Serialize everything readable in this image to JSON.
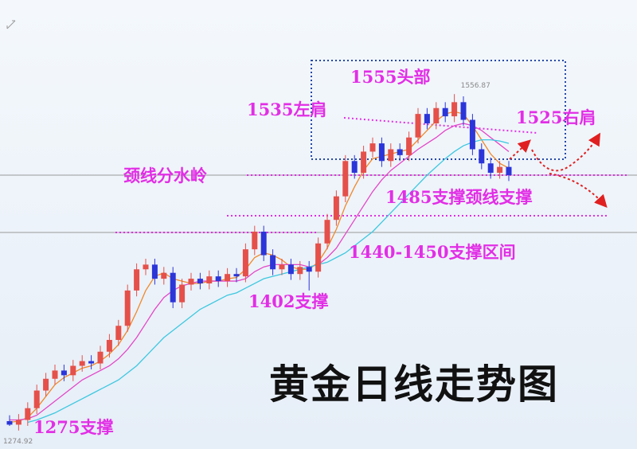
{
  "chart_data": {
    "type": "candlestick",
    "title": "黄金日线走势图",
    "open": [
      1279,
      1276,
      1280,
      1290,
      1305,
      1315,
      1322,
      1318,
      1326,
      1330,
      1328,
      1338,
      1348,
      1360,
      1390,
      1408,
      1412,
      1400,
      1405,
      1380,
      1395,
      1400,
      1396,
      1402,
      1398,
      1404,
      1402,
      1425,
      1440,
      1420,
      1408,
      1412,
      1404,
      1410,
      1406,
      1430,
      1450,
      1470,
      1500,
      1490,
      1508,
      1515,
      1500,
      1510,
      1505,
      1520,
      1540,
      1532,
      1545,
      1538,
      1550,
      1535,
      1510,
      1498,
      1490,
      1495
    ],
    "high": [
      1284,
      1285,
      1295,
      1310,
      1320,
      1327,
      1327,
      1331,
      1335,
      1335,
      1343,
      1353,
      1365,
      1395,
      1413,
      1417,
      1417,
      1410,
      1410,
      1400,
      1405,
      1405,
      1407,
      1407,
      1409,
      1409,
      1430,
      1445,
      1445,
      1425,
      1417,
      1417,
      1415,
      1415,
      1435,
      1455,
      1475,
      1505,
      1505,
      1513,
      1520,
      1520,
      1515,
      1515,
      1525,
      1545,
      1545,
      1550,
      1550,
      1556.87,
      1555,
      1540,
      1515,
      1503,
      1500,
      1500
    ],
    "low": [
      1274.92,
      1271,
      1275,
      1285,
      1300,
      1310,
      1313,
      1313,
      1321,
      1323,
      1323,
      1333,
      1343,
      1355,
      1385,
      1403,
      1395,
      1395,
      1375,
      1375,
      1390,
      1391,
      1391,
      1393,
      1393,
      1397,
      1397,
      1420,
      1415,
      1403,
      1403,
      1399,
      1399,
      1390,
      1401,
      1425,
      1445,
      1465,
      1485,
      1485,
      1503,
      1495,
      1495,
      1500,
      1500,
      1515,
      1527,
      1527,
      1533,
      1533,
      1530,
      1505,
      1493,
      1485,
      1485,
      1483
    ],
    "close": [
      1276,
      1280,
      1290,
      1305,
      1315,
      1322,
      1318,
      1326,
      1330,
      1328,
      1338,
      1348,
      1360,
      1390,
      1408,
      1412,
      1400,
      1405,
      1380,
      1395,
      1400,
      1396,
      1402,
      1398,
      1404,
      1402,
      1425,
      1440,
      1420,
      1408,
      1412,
      1404,
      1410,
      1406,
      1430,
      1450,
      1470,
      1500,
      1490,
      1508,
      1515,
      1500,
      1510,
      1505,
      1520,
      1540,
      1532,
      1545,
      1538,
      1550,
      1535,
      1510,
      1498,
      1490,
      1495,
      1488
    ],
    "up_color": "#e5504a",
    "down_color": "#2b35d8",
    "moving_averages": [
      {
        "color": "#f0882a",
        "values": [
          1278,
          1279,
          1282,
          1290,
          1300,
          1310,
          1316,
          1320,
          1324,
          1326,
          1330,
          1336,
          1344,
          1356,
          1372,
          1390,
          1402,
          1405,
          1400,
          1398,
          1396,
          1396,
          1398,
          1398,
          1400,
          1401,
          1408,
          1418,
          1422,
          1420,
          1416,
          1410,
          1408,
          1408,
          1414,
          1426,
          1442,
          1462,
          1478,
          1492,
          1502,
          1504,
          1506,
          1508,
          1510,
          1518,
          1526,
          1534,
          1540,
          1542,
          1540,
          1530,
          1518,
          1506,
          1498,
          1494
        ]
      },
      {
        "color": "#e447c8",
        "values": [
          1280,
          1280,
          1281,
          1284,
          1290,
          1296,
          1302,
          1308,
          1314,
          1318,
          1322,
          1326,
          1332,
          1340,
          1350,
          1362,
          1374,
          1384,
          1390,
          1394,
          1396,
          1398,
          1398,
          1398,
          1398,
          1398,
          1400,
          1406,
          1410,
          1412,
          1412,
          1412,
          1412,
          1410,
          1412,
          1418,
          1426,
          1438,
          1450,
          1462,
          1474,
          1484,
          1492,
          1498,
          1504,
          1510,
          1515,
          1520,
          1526,
          1530,
          1532,
          1530,
          1526,
          1520,
          1514,
          1508
        ]
      },
      {
        "color": "#3cc8e0",
        "values": [
          null,
          null,
          1278,
          1280,
          1283,
          1286,
          1290,
          1294,
          1298,
          1302,
          1306,
          1310,
          1314,
          1320,
          1326,
          1334,
          1342,
          1350,
          1356,
          1362,
          1368,
          1374,
          1378,
          1382,
          1386,
          1388,
          1392,
          1396,
          1400,
          1402,
          1404,
          1406,
          1408,
          1410,
          1412,
          1414,
          1418,
          1422,
          1428,
          1434,
          1440,
          1448,
          1456,
          1464,
          1472,
          1480,
          1488,
          1495,
          1502,
          1508,
          1513,
          1516,
          1518,
          1518,
          1517,
          1515
        ]
      }
    ],
    "ylim": [
      1256,
      1580
    ],
    "price_labels": [
      1556.87,
      1274.92
    ],
    "annotations": [
      "1555头部",
      "1535左肩",
      "1525右肩",
      "颈线分水岭",
      "1485支撑颈线支撑",
      "1440-1450支撑区间",
      "1402支撑",
      "1275支撑"
    ]
  }
}
